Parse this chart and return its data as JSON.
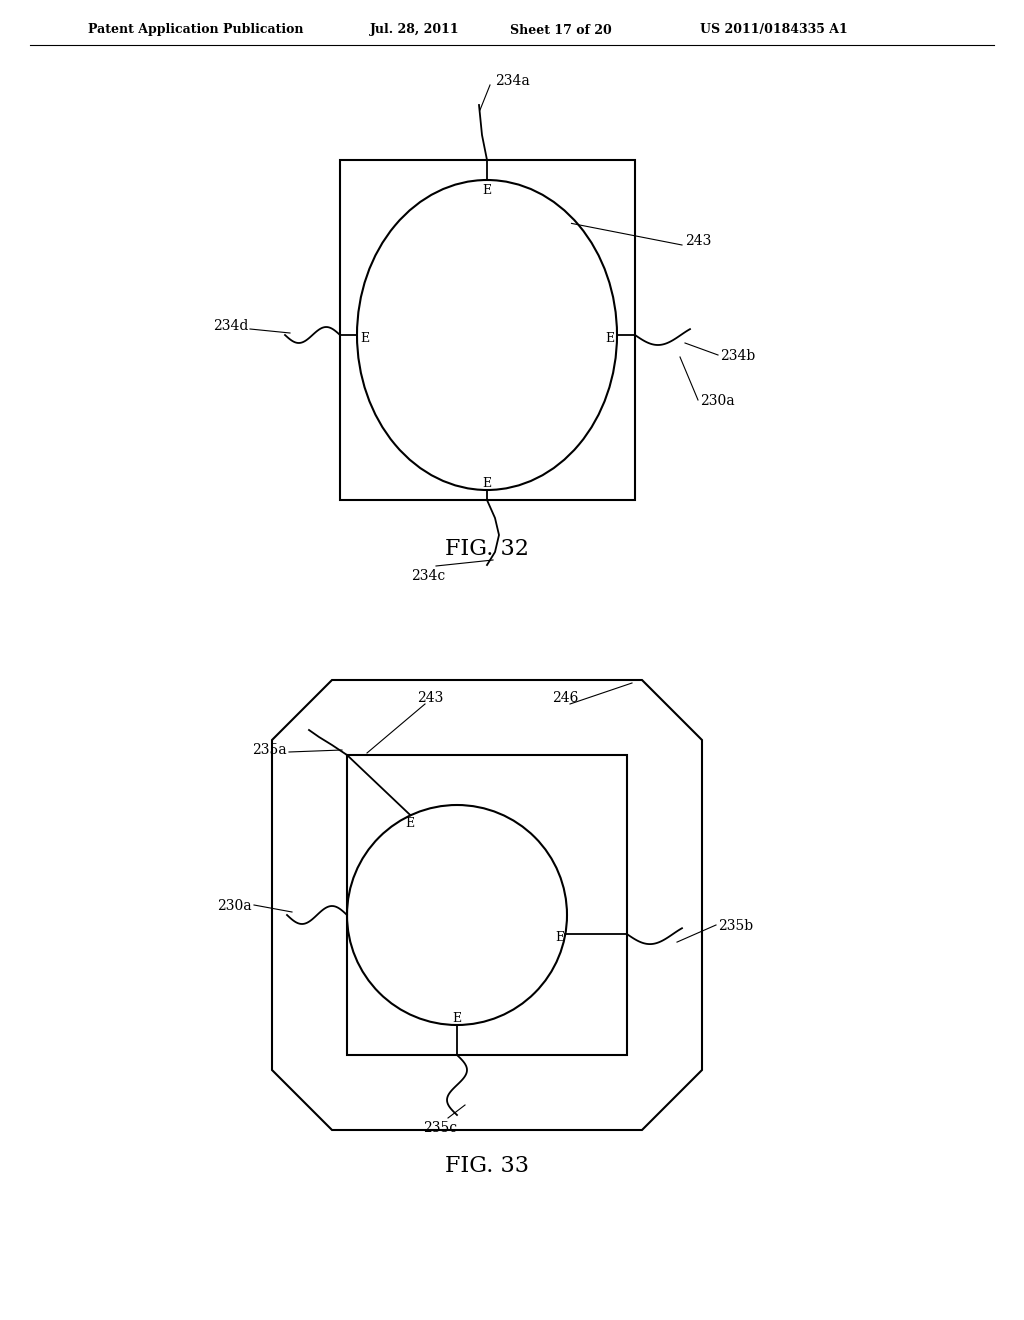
{
  "bg_color": "#ffffff",
  "header_text": "Patent Application Publication",
  "header_date": "Jul. 28, 2011",
  "header_sheet": "Sheet 17 of 20",
  "header_patent": "US 2011/0184335 A1",
  "fig32_title": "FIG. 32",
  "fig33_title": "FIG. 33",
  "line_color": "#000000",
  "text_color": "#000000"
}
